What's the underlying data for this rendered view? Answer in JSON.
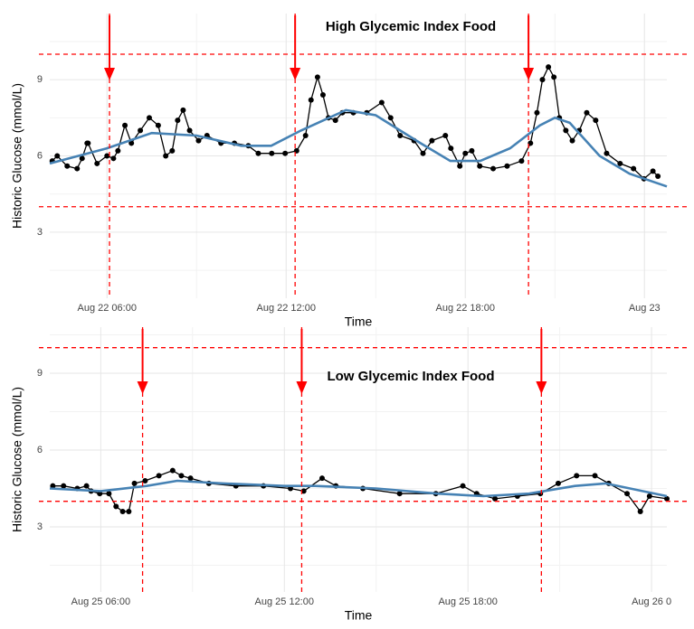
{
  "chart_data": [
    {
      "type": "line",
      "annotation": "High Glycemic Index Food",
      "x_label": "Time",
      "y_label": "Historic Glucose (mmol/L)",
      "xlim": [
        "Aug 22 04:05",
        "Aug 23 00:45"
      ],
      "xticks": [
        "Aug 22 06:00",
        "Aug 22 12:00",
        "Aug 22 18:00",
        {
          "value": "Aug 23 00:00",
          "label": "Aug 23"
        }
      ],
      "ylim": [
        0.4,
        11.6
      ],
      "yticks": [
        3,
        6,
        9
      ],
      "grid": true,
      "hlines": [
        4,
        10
      ],
      "vlines": [
        "Aug 22 06:05",
        "Aug 22 12:18",
        "Aug 22 20:07"
      ],
      "ref_color": "#ff0000",
      "series": [
        {
          "color": "#000000",
          "markers": true,
          "x": [
            "Aug 22 04:10",
            "Aug 22 04:20",
            "Aug 22 04:40",
            "Aug 22 05:00",
            "Aug 22 05:10",
            "Aug 22 05:20",
            "Aug 22 05:22",
            "Aug 22 05:40",
            "Aug 22 06:00",
            "Aug 22 06:13",
            "Aug 22 06:22",
            "Aug 22 06:36",
            "Aug 22 06:49",
            "Aug 22 07:07",
            "Aug 22 07:25",
            "Aug 22 07:43",
            "Aug 22 07:58",
            "Aug 22 08:11",
            "Aug 22 08:22",
            "Aug 22 08:33",
            "Aug 22 08:46",
            "Aug 22 09:04",
            "Aug 22 09:21",
            "Aug 22 09:49",
            "Aug 22 10:16",
            "Aug 22 10:44",
            "Aug 22 11:04",
            "Aug 22 11:31",
            "Aug 22 11:58",
            "Aug 22 12:21",
            "Aug 22 12:39",
            "Aug 22 12:50",
            "Aug 22 13:03",
            "Aug 22 13:14",
            "Aug 22 13:25",
            "Aug 22 13:39",
            "Aug 22 13:53",
            "Aug 22 14:15",
            "Aug 22 14:42",
            "Aug 22 15:12",
            "Aug 22 15:30",
            "Aug 22 15:49",
            "Aug 22 16:17",
            "Aug 22 16:35",
            "Aug 22 16:53",
            "Aug 22 17:20",
            "Aug 22 17:31",
            "Aug 22 17:49",
            "Aug 22 18:00",
            "Aug 22 18:13",
            "Aug 22 18:29",
            "Aug 22 18:56",
            "Aug 22 19:24",
            "Aug 22 19:53",
            "Aug 22 20:11",
            "Aug 22 20:24",
            "Aug 22 20:35",
            "Aug 22 20:47",
            "Aug 22 20:58",
            "Aug 22 21:09",
            "Aug 22 21:22",
            "Aug 22 21:35",
            "Aug 22 21:49",
            "Aug 22 22:04",
            "Aug 22 22:22",
            "Aug 22 22:44",
            "Aug 22 23:11",
            "Aug 22 23:38",
            "Aug 22 23:59",
            "Aug 23 00:17",
            "Aug 23 00:27"
          ],
          "values": [
            5.8,
            6.0,
            5.6,
            5.5,
            5.9,
            6.5,
            6.5,
            5.7,
            6.0,
            5.9,
            6.2,
            7.2,
            6.5,
            7.0,
            7.5,
            7.2,
            6.0,
            6.2,
            7.4,
            7.8,
            7.0,
            6.6,
            6.8,
            6.5,
            6.5,
            6.4,
            6.1,
            6.1,
            6.1,
            6.2,
            6.8,
            8.2,
            9.1,
            8.4,
            7.5,
            7.4,
            7.7,
            7.7,
            7.7,
            8.1,
            7.5,
            6.8,
            6.6,
            6.1,
            6.6,
            6.8,
            6.3,
            5.6,
            6.1,
            6.2,
            5.6,
            5.5,
            5.6,
            5.8,
            6.5,
            7.7,
            9.0,
            9.5,
            9.1,
            7.5,
            7.0,
            6.6,
            7.0,
            7.7,
            7.4,
            6.1,
            5.7,
            5.5,
            5.1,
            5.4,
            5.2
          ]
        },
        {
          "color": "#4682b4",
          "markers": false,
          "x": [
            "Aug 22 04:05",
            "Aug 22 06:00",
            "Aug 22 07:30",
            "Aug 22 09:00",
            "Aug 22 10:30",
            "Aug 22 11:30",
            "Aug 22 12:30",
            "Aug 22 14:00",
            "Aug 22 15:00",
            "Aug 22 16:30",
            "Aug 22 17:30",
            "Aug 22 18:30",
            "Aug 22 19:30",
            "Aug 22 20:30",
            "Aug 22 21:00",
            "Aug 22 21:30",
            "Aug 22 22:30",
            "Aug 22 23:30",
            "Aug 23 00:45"
          ],
          "values": [
            5.7,
            6.3,
            6.9,
            6.8,
            6.4,
            6.4,
            7.0,
            7.8,
            7.6,
            6.5,
            5.8,
            5.8,
            6.3,
            7.2,
            7.5,
            7.3,
            6.0,
            5.3,
            4.8
          ]
        }
      ]
    },
    {
      "type": "line",
      "annotation": "Low Glycemic Index Food",
      "x_label": "Time",
      "y_label": "Historic Glucose (mmol/L)",
      "xlim": [
        "Aug 25 04:20",
        "Aug 26 00:30"
      ],
      "xticks": [
        "Aug 25 06:00",
        "Aug 25 12:00",
        "Aug 25 18:00",
        {
          "value": "Aug 26 00:00",
          "label": "Aug 26 0"
        }
      ],
      "ylim": [
        0.46,
        10.8
      ],
      "yticks": [
        3,
        6,
        9
      ],
      "grid": true,
      "hlines": [
        4,
        10
      ],
      "vlines": [
        "Aug 25 07:22",
        "Aug 25 12:34",
        "Aug 25 20:24"
      ],
      "ref_color": "#ff0000",
      "series": [
        {
          "color": "#000000",
          "markers": true,
          "x": [
            "Aug 25 04:26",
            "Aug 25 04:47",
            "Aug 25 05:14",
            "Aug 25 05:32",
            "Aug 25 05:41",
            "Aug 25 05:58",
            "Aug 25 06:16",
            "Aug 25 06:30",
            "Aug 25 06:43",
            "Aug 25 06:55",
            "Aug 25 07:06",
            "Aug 25 07:27",
            "Aug 25 07:54",
            "Aug 25 08:21",
            "Aug 25 08:38",
            "Aug 25 08:56",
            "Aug 25 09:32",
            "Aug 25 10:25",
            "Aug 25 11:19",
            "Aug 25 12:12",
            "Aug 25 12:38",
            "Aug 25 13:14",
            "Aug 25 13:41",
            "Aug 25 14:34",
            "Aug 25 15:46",
            "Aug 25 16:57",
            "Aug 25 17:50",
            "Aug 25 18:17",
            "Aug 25 18:53",
            "Aug 25 19:37",
            "Aug 25 20:22",
            "Aug 25 20:57",
            "Aug 25 21:33",
            "Aug 25 22:09",
            "Aug 25 22:36",
            "Aug 25 23:12",
            "Aug 25 23:38",
            "Aug 25 23:56",
            "Aug 26 00:30"
          ],
          "values": [
            4.6,
            4.6,
            4.5,
            4.6,
            4.4,
            4.3,
            4.3,
            3.8,
            3.6,
            3.6,
            4.7,
            4.8,
            5.0,
            5.2,
            5.0,
            4.9,
            4.7,
            4.6,
            4.6,
            4.5,
            4.4,
            4.9,
            4.6,
            4.5,
            4.3,
            4.3,
            4.6,
            4.3,
            4.1,
            4.2,
            4.3,
            4.7,
            5.0,
            5.0,
            4.7,
            4.3,
            3.6,
            4.2,
            4.1
          ]
        },
        {
          "color": "#4682b4",
          "markers": false,
          "x": [
            "Aug 25 04:20",
            "Aug 25 06:00",
            "Aug 25 07:30",
            "Aug 25 08:30",
            "Aug 25 10:00",
            "Aug 25 12:00",
            "Aug 25 13:00",
            "Aug 25 15:00",
            "Aug 25 17:00",
            "Aug 25 18:30",
            "Aug 25 20:00",
            "Aug 25 21:30",
            "Aug 25 22:30",
            "Aug 26 00:30"
          ],
          "values": [
            4.5,
            4.4,
            4.6,
            4.8,
            4.7,
            4.6,
            4.6,
            4.5,
            4.3,
            4.2,
            4.3,
            4.6,
            4.7,
            4.2
          ]
        }
      ]
    }
  ]
}
